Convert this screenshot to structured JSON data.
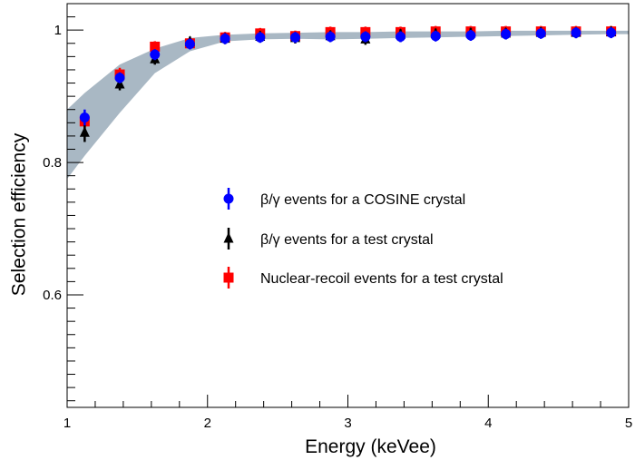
{
  "chart_data": {
    "type": "scatter",
    "title": "",
    "xlabel": "Energy (keVee)",
    "ylabel": "Selection efficiency",
    "xlim": [
      1,
      5
    ],
    "ylim": [
      0.43,
      1.04
    ],
    "x_ticks": [
      {
        "value": 1,
        "label": "1"
      },
      {
        "value": 2,
        "label": "2"
      },
      {
        "value": 3,
        "label": "3"
      },
      {
        "value": 4,
        "label": "4"
      },
      {
        "value": 5,
        "label": "5"
      }
    ],
    "y_ticks": [
      {
        "value": 0.6,
        "label": "0.6"
      },
      {
        "value": 0.8,
        "label": "0.8"
      },
      {
        "value": 1.0,
        "label": "1"
      }
    ],
    "band": {
      "name": "uncertainty band",
      "color": "#a9b8c4",
      "x": [
        1.0,
        1.125,
        1.375,
        1.625,
        1.875,
        2.125,
        2.375,
        2.625,
        2.875,
        3.125,
        3.375,
        3.625,
        3.875,
        4.125,
        4.375,
        4.625,
        4.875,
        5.0
      ],
      "upper": [
        0.88,
        0.905,
        0.948,
        0.972,
        0.988,
        0.993,
        0.995,
        0.996,
        0.997,
        0.997,
        0.998,
        0.998,
        0.998,
        0.999,
        0.999,
        0.999,
        0.999,
        0.999
      ],
      "lower": [
        0.775,
        0.81,
        0.875,
        0.935,
        0.968,
        0.983,
        0.986,
        0.987,
        0.986,
        0.987,
        0.988,
        0.989,
        0.99,
        0.991,
        0.992,
        0.993,
        0.994,
        0.994
      ]
    },
    "series": [
      {
        "name": "β/γ events for a COSINE crystal",
        "marker": "circle",
        "color": "#0000ff",
        "x": [
          1.125,
          1.375,
          1.625,
          1.875,
          2.125,
          2.375,
          2.625,
          2.875,
          3.125,
          3.375,
          3.625,
          3.875,
          4.125,
          4.375,
          4.625,
          4.875
        ],
        "y": [
          0.868,
          0.928,
          0.963,
          0.979,
          0.987,
          0.989,
          0.989,
          0.99,
          0.99,
          0.99,
          0.991,
          0.992,
          0.994,
          0.995,
          0.996,
          0.996
        ],
        "err": [
          0.012,
          0.008,
          0.005,
          0.004,
          0.003,
          0.003,
          0.003,
          0.003,
          0.003,
          0.003,
          0.003,
          0.003,
          0.002,
          0.002,
          0.002,
          0.002
        ]
      },
      {
        "name": "β/γ events for a test crystal",
        "marker": "triangle",
        "color": "#000000",
        "x": [
          1.125,
          1.375,
          1.625,
          1.875,
          2.125,
          2.375,
          2.625,
          2.875,
          3.125,
          3.375,
          3.625,
          3.875,
          4.125,
          4.375,
          4.625,
          4.875
        ],
        "y": [
          0.845,
          0.918,
          0.956,
          0.982,
          0.987,
          0.99,
          0.988,
          0.991,
          0.986,
          0.993,
          0.994,
          0.995,
          0.995,
          0.996,
          0.996,
          0.997
        ],
        "err": [
          0.014,
          0.009,
          0.006,
          0.005,
          0.004,
          0.003,
          0.004,
          0.003,
          0.004,
          0.003,
          0.003,
          0.003,
          0.002,
          0.002,
          0.002,
          0.002
        ]
      },
      {
        "name": "Nuclear-recoil events for a test crystal",
        "marker": "square",
        "color": "#ff0000",
        "x": [
          1.125,
          1.375,
          1.625,
          1.875,
          2.125,
          2.375,
          2.625,
          2.875,
          3.125,
          3.375,
          3.625,
          3.875,
          4.125,
          4.375,
          4.625,
          4.875
        ],
        "y": [
          0.862,
          0.933,
          0.975,
          0.98,
          0.989,
          0.995,
          0.991,
          0.997,
          0.997,
          0.997,
          0.998,
          0.998,
          0.998,
          0.998,
          0.998,
          0.998
        ],
        "err": [
          0.012,
          0.01,
          0.005,
          0.004,
          0.003,
          0.002,
          0.003,
          0.002,
          0.002,
          0.002,
          0.002,
          0.002,
          0.002,
          0.002,
          0.002,
          0.002
        ]
      }
    ],
    "legend_position": "center"
  }
}
